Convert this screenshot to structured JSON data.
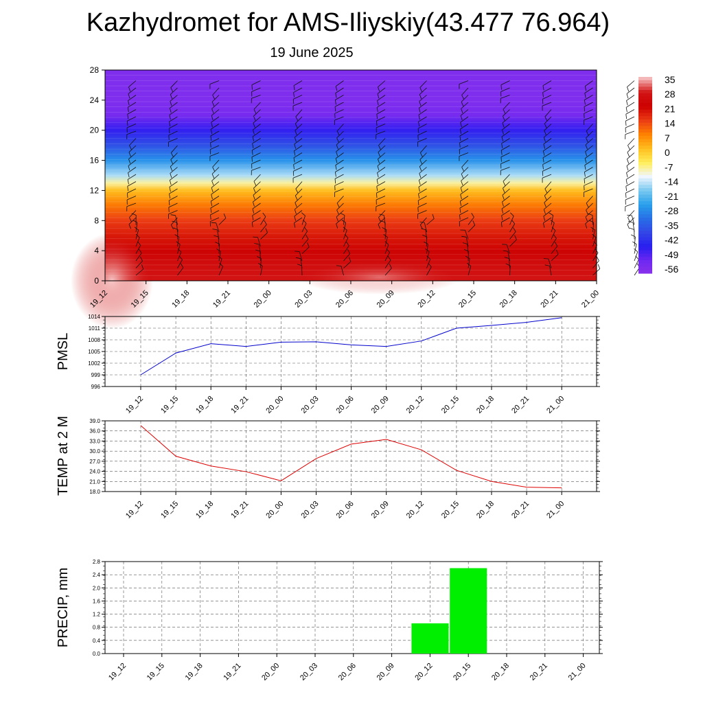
{
  "title": "Kazhydromet for AMS-Iliyskiy(43.477 76.964)",
  "subtitle": "19 June 2025",
  "chart_data": [
    {
      "type": "heatmap",
      "name": "Vertical cross-section (temperature with wind barbs)",
      "categories": [
        "19_12",
        "19_15",
        "19_18",
        "19_21",
        "20_00",
        "20_03",
        "20_06",
        "20_09",
        "20_12",
        "20_15",
        "20_18",
        "20_21",
        "21_00"
      ],
      "y_ticks": [
        "0",
        "4",
        "8",
        "12",
        "16",
        "20",
        "24",
        "28"
      ],
      "ylim": [
        0,
        28
      ],
      "colorbar": {
        "labels": [
          "35",
          "28",
          "21",
          "14",
          "7",
          "0",
          "-7",
          "-14",
          "-21",
          "-28",
          "-35",
          "-42",
          "-49",
          "-56"
        ],
        "range": [
          -63,
          35
        ]
      },
      "temperature_profile": [
        {
          "y": 0,
          "value": 28
        },
        {
          "y": 2,
          "value": 26
        },
        {
          "y": 4,
          "value": 22
        },
        {
          "y": 6,
          "value": 18
        },
        {
          "y": 8,
          "value": 14
        },
        {
          "y": 10,
          "value": 8
        },
        {
          "y": 12,
          "value": 0
        },
        {
          "y": 13,
          "value": -10
        },
        {
          "y": 14,
          "value": -18
        },
        {
          "y": 16,
          "value": -30
        },
        {
          "y": 18,
          "value": -40
        },
        {
          "y": 20,
          "value": -50
        },
        {
          "y": 22,
          "value": -58
        },
        {
          "y": 24,
          "value": -60
        },
        {
          "y": 28,
          "value": -60
        }
      ],
      "colors": {
        "hot": "#f5b8b8",
        "red": "#cc0000",
        "orange": "#ff8800",
        "yellow": "#ffee55",
        "white": "#f0f6ff",
        "cyan": "#33aaee",
        "blue": "#2222ee",
        "purple": "#8a2be2"
      }
    },
    {
      "type": "line",
      "ylabel": "PMSL",
      "categories": [
        "19_12",
        "19_15",
        "19_18",
        "19_21",
        "20_00",
        "20_03",
        "20_06",
        "20_09",
        "20_12",
        "20_15",
        "20_18",
        "20_21",
        "21_00"
      ],
      "y_ticks": [
        "1014",
        "1011",
        "1008",
        "1005",
        "1002",
        "999",
        "996"
      ],
      "ylim": [
        996,
        1014
      ],
      "series": [
        {
          "values": [
            999.0,
            1004.6,
            1007.0,
            1006.3,
            1007.4,
            1007.5,
            1006.7,
            1006.3,
            1007.7,
            1011.0,
            1011.7,
            1012.5,
            1013.7
          ],
          "color": "#0000cc"
        }
      ],
      "grid": true
    },
    {
      "type": "line",
      "ylabel": "TEMP at 2 M",
      "categories": [
        "19_12",
        "19_15",
        "19_18",
        "19_21",
        "20_00",
        "20_03",
        "20_06",
        "20_09",
        "20_12",
        "20_15",
        "20_18",
        "20_21",
        "21_00"
      ],
      "y_ticks": [
        "39.0",
        "36.0",
        "33.0",
        "30.0",
        "27.0",
        "24.0",
        "21.0",
        "18.0"
      ],
      "ylim": [
        18,
        39
      ],
      "series": [
        {
          "values": [
            37.6,
            28.5,
            25.6,
            23.9,
            21.2,
            27.8,
            32.1,
            33.5,
            30.4,
            24.3,
            21.0,
            19.3,
            19.1
          ],
          "color": "#dd0000"
        }
      ],
      "grid": true
    },
    {
      "type": "bar",
      "ylabel": "PRECIP, mm",
      "categories": [
        "19_12",
        "19_15",
        "19_18",
        "19_21",
        "20_00",
        "20_03",
        "20_06",
        "20_09",
        "20_12",
        "20_15",
        "20_18",
        "20_21",
        "21_00"
      ],
      "y_ticks": [
        "2.8",
        "2.4",
        "2.0",
        "1.6",
        "1.2",
        "0.8",
        "0.4",
        "0.0"
      ],
      "ylim": [
        0,
        2.8
      ],
      "series": [
        {
          "values": [
            0,
            0,
            0,
            0,
            0,
            0,
            0,
            0,
            0.92,
            2.6,
            0,
            0,
            0
          ],
          "color": "#00ee00"
        }
      ],
      "grid": true
    }
  ]
}
